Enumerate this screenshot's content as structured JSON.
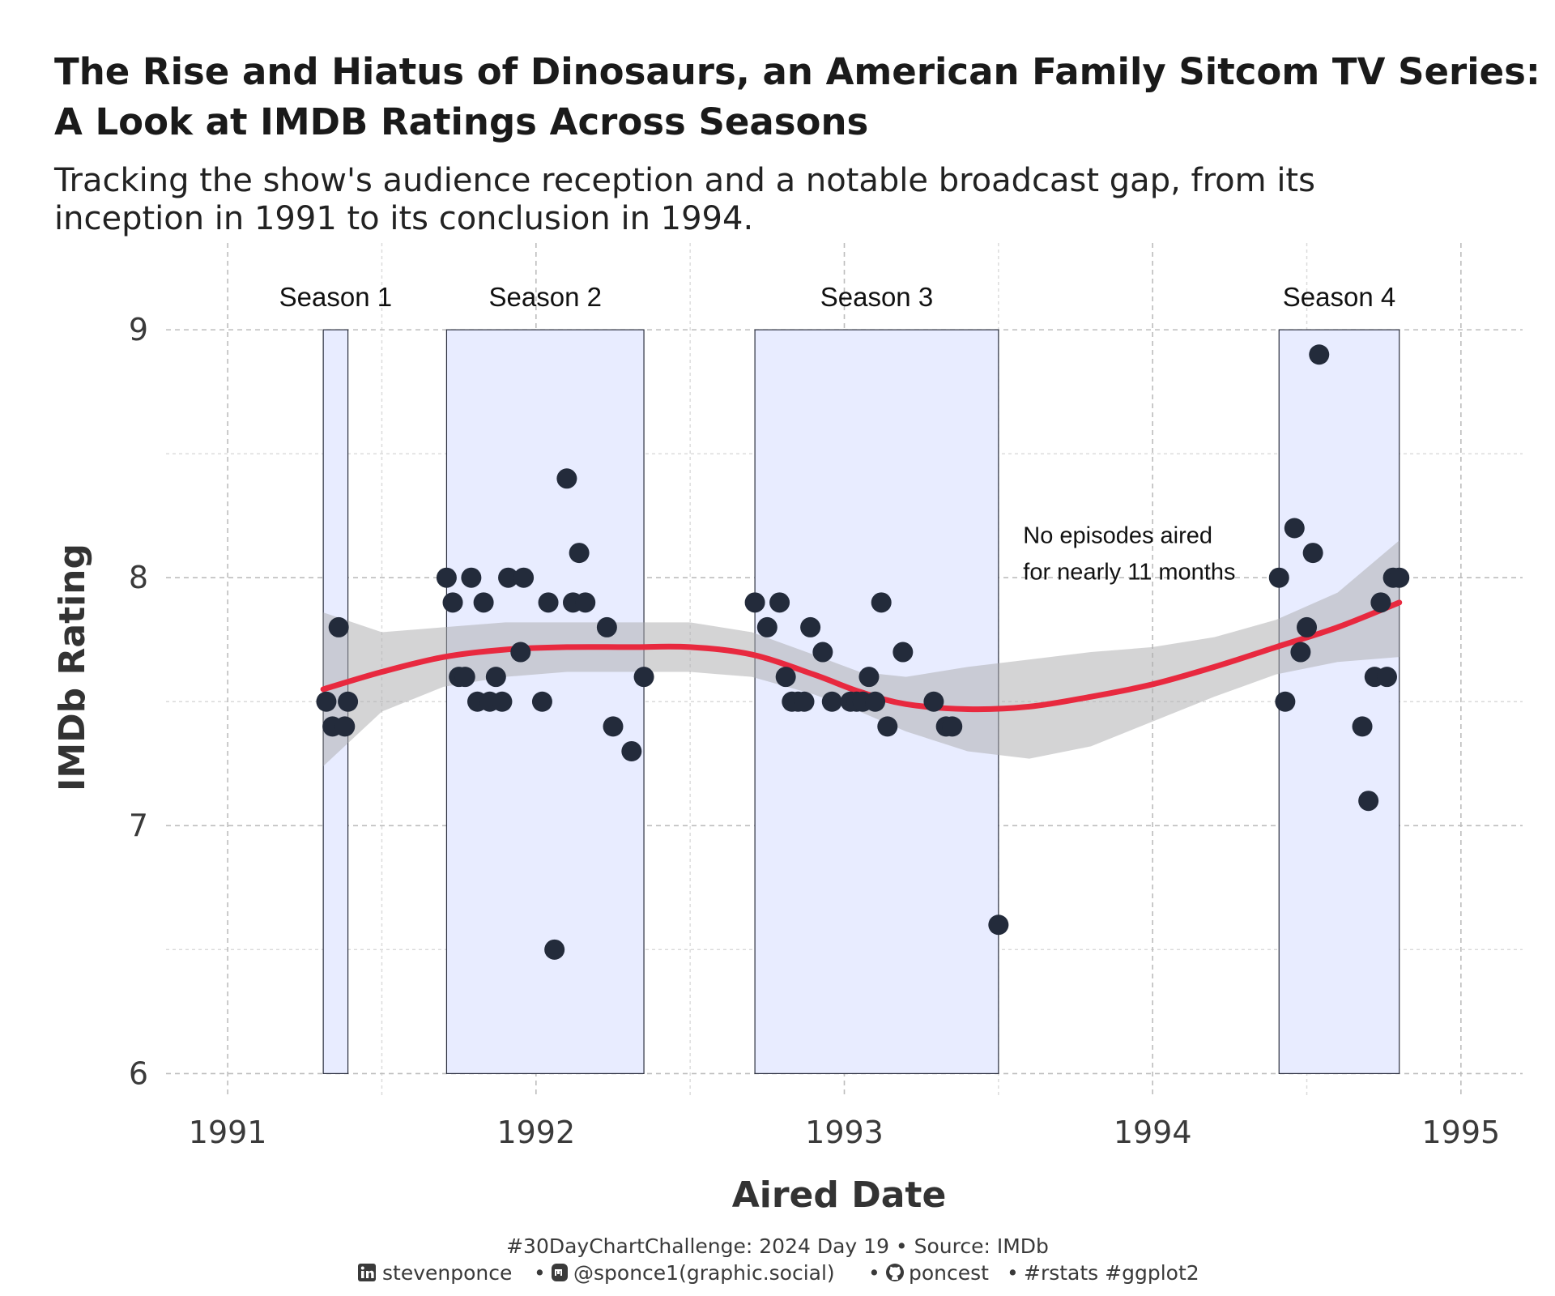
{
  "chart_data": {
    "type": "scatter",
    "title_lines": [
      "The Rise and Hiatus of Dinosaurs, an American Family Sitcom TV Series:",
      "A Look at IMDB Ratings Across Seasons"
    ],
    "subtitle_lines": [
      "Tracking the show's audience reception and a notable broadcast gap, from its",
      "inception in 1991 to its conclusion in 1994."
    ],
    "xlabel": "Aired Date",
    "ylabel": "IMDb Rating",
    "xlim": [
      1990.8,
      1995.2
    ],
    "ylim": [
      5.9,
      9.35
    ],
    "x_ticks": [
      1991,
      1992,
      1993,
      1994,
      1995
    ],
    "y_ticks": [
      6,
      7,
      8,
      9
    ],
    "grid": true,
    "seasons": [
      {
        "label": "Season 1",
        "x_start": 1991.31,
        "x_end": 1991.39,
        "y_min": 6,
        "y_max": 9
      },
      {
        "label": "Season 2",
        "x_start": 1991.71,
        "x_end": 1992.35,
        "y_min": 6,
        "y_max": 9
      },
      {
        "label": "Season 3",
        "x_start": 1992.71,
        "x_end": 1993.5,
        "y_min": 6,
        "y_max": 9
      },
      {
        "label": "Season 4",
        "x_start": 1994.41,
        "x_end": 1994.8,
        "y_min": 6,
        "y_max": 9
      }
    ],
    "points": [
      [
        1991.32,
        7.5
      ],
      [
        1991.34,
        7.4
      ],
      [
        1991.36,
        7.8
      ],
      [
        1991.38,
        7.4
      ],
      [
        1991.39,
        7.5
      ],
      [
        1991.71,
        8.0
      ],
      [
        1991.73,
        7.9
      ],
      [
        1991.75,
        7.6
      ],
      [
        1991.77,
        7.6
      ],
      [
        1991.79,
        8.0
      ],
      [
        1991.81,
        7.5
      ],
      [
        1991.83,
        7.9
      ],
      [
        1991.85,
        7.5
      ],
      [
        1991.87,
        7.6
      ],
      [
        1991.89,
        7.5
      ],
      [
        1991.91,
        8.0
      ],
      [
        1991.95,
        7.7
      ],
      [
        1991.96,
        8.0
      ],
      [
        1992.02,
        7.5
      ],
      [
        1992.04,
        7.9
      ],
      [
        1992.06,
        6.5
      ],
      [
        1992.1,
        8.4
      ],
      [
        1992.12,
        7.9
      ],
      [
        1992.14,
        8.1
      ],
      [
        1992.16,
        7.9
      ],
      [
        1992.23,
        7.8
      ],
      [
        1992.25,
        7.4
      ],
      [
        1992.31,
        7.3
      ],
      [
        1992.35,
        7.6
      ],
      [
        1992.71,
        7.9
      ],
      [
        1992.75,
        7.8
      ],
      [
        1992.79,
        7.9
      ],
      [
        1992.81,
        7.6
      ],
      [
        1992.83,
        7.5
      ],
      [
        1992.85,
        7.5
      ],
      [
        1992.87,
        7.5
      ],
      [
        1992.89,
        7.8
      ],
      [
        1992.93,
        7.7
      ],
      [
        1992.96,
        7.5
      ],
      [
        1993.02,
        7.5
      ],
      [
        1993.04,
        7.5
      ],
      [
        1993.06,
        7.5
      ],
      [
        1993.08,
        7.6
      ],
      [
        1993.1,
        7.5
      ],
      [
        1993.12,
        7.9
      ],
      [
        1993.14,
        7.4
      ],
      [
        1993.19,
        7.7
      ],
      [
        1993.29,
        7.5
      ],
      [
        1993.33,
        7.4
      ],
      [
        1993.35,
        7.4
      ],
      [
        1993.5,
        6.6
      ],
      [
        1994.41,
        8.0
      ],
      [
        1994.43,
        7.5
      ],
      [
        1994.46,
        8.2
      ],
      [
        1994.48,
        7.7
      ],
      [
        1994.5,
        7.8
      ],
      [
        1994.52,
        8.1
      ],
      [
        1994.54,
        8.9
      ],
      [
        1994.68,
        7.4
      ],
      [
        1994.7,
        7.1
      ],
      [
        1994.72,
        7.6
      ],
      [
        1994.74,
        7.9
      ],
      [
        1994.76,
        7.6
      ],
      [
        1994.78,
        8.0
      ],
      [
        1994.8,
        8.0
      ]
    ],
    "smooth_line": [
      [
        1991.31,
        7.55
      ],
      [
        1991.5,
        7.62
      ],
      [
        1991.7,
        7.68
      ],
      [
        1991.9,
        7.71
      ],
      [
        1992.1,
        7.72
      ],
      [
        1992.3,
        7.72
      ],
      [
        1992.5,
        7.72
      ],
      [
        1992.7,
        7.69
      ],
      [
        1992.9,
        7.61
      ],
      [
        1993.05,
        7.54
      ],
      [
        1993.2,
        7.49
      ],
      [
        1993.4,
        7.47
      ],
      [
        1993.6,
        7.48
      ],
      [
        1993.8,
        7.52
      ],
      [
        1994.0,
        7.57
      ],
      [
        1994.2,
        7.64
      ],
      [
        1994.4,
        7.72
      ],
      [
        1994.6,
        7.8
      ],
      [
        1994.8,
        7.9
      ]
    ],
    "confidence_band": {
      "x": [
        1991.31,
        1991.5,
        1991.7,
        1991.9,
        1992.1,
        1992.3,
        1992.5,
        1992.7,
        1992.9,
        1993.05,
        1993.2,
        1993.4,
        1993.6,
        1993.8,
        1994.0,
        1994.2,
        1994.4,
        1994.6,
        1994.8
      ],
      "lower": [
        7.24,
        7.46,
        7.56,
        7.6,
        7.62,
        7.62,
        7.62,
        7.6,
        7.53,
        7.46,
        7.38,
        7.3,
        7.27,
        7.32,
        7.42,
        7.52,
        7.61,
        7.66,
        7.68
      ],
      "upper": [
        7.86,
        7.78,
        7.8,
        7.82,
        7.82,
        7.82,
        7.82,
        7.78,
        7.69,
        7.62,
        7.6,
        7.64,
        7.67,
        7.7,
        7.72,
        7.76,
        7.83,
        7.94,
        8.15
      ]
    },
    "annotation": {
      "lines": [
        "No episodes aired",
        "for nearly 11 months"
      ],
      "x": 1993.58,
      "y": 8.14
    },
    "colors": {
      "points": "#232b3b",
      "smooth_line": "#e8293f",
      "confidence_band": "#a9a9ab",
      "season_fill": "#e8ecff",
      "season_stroke": "#2b2f3e",
      "grid": "#bdbdbd"
    }
  },
  "caption": {
    "line1": "#30DayChartChallenge:  2024 Day 19 • Source: IMDb",
    "linkedin": "stevenponce",
    "mastodon": "@sponce1(graphic.social)",
    "github": "poncest",
    "tags": "#rstats #ggplot2",
    "separator": "•",
    "icons": [
      "linkedin-icon",
      "mastodon-icon",
      "github-icon"
    ]
  }
}
